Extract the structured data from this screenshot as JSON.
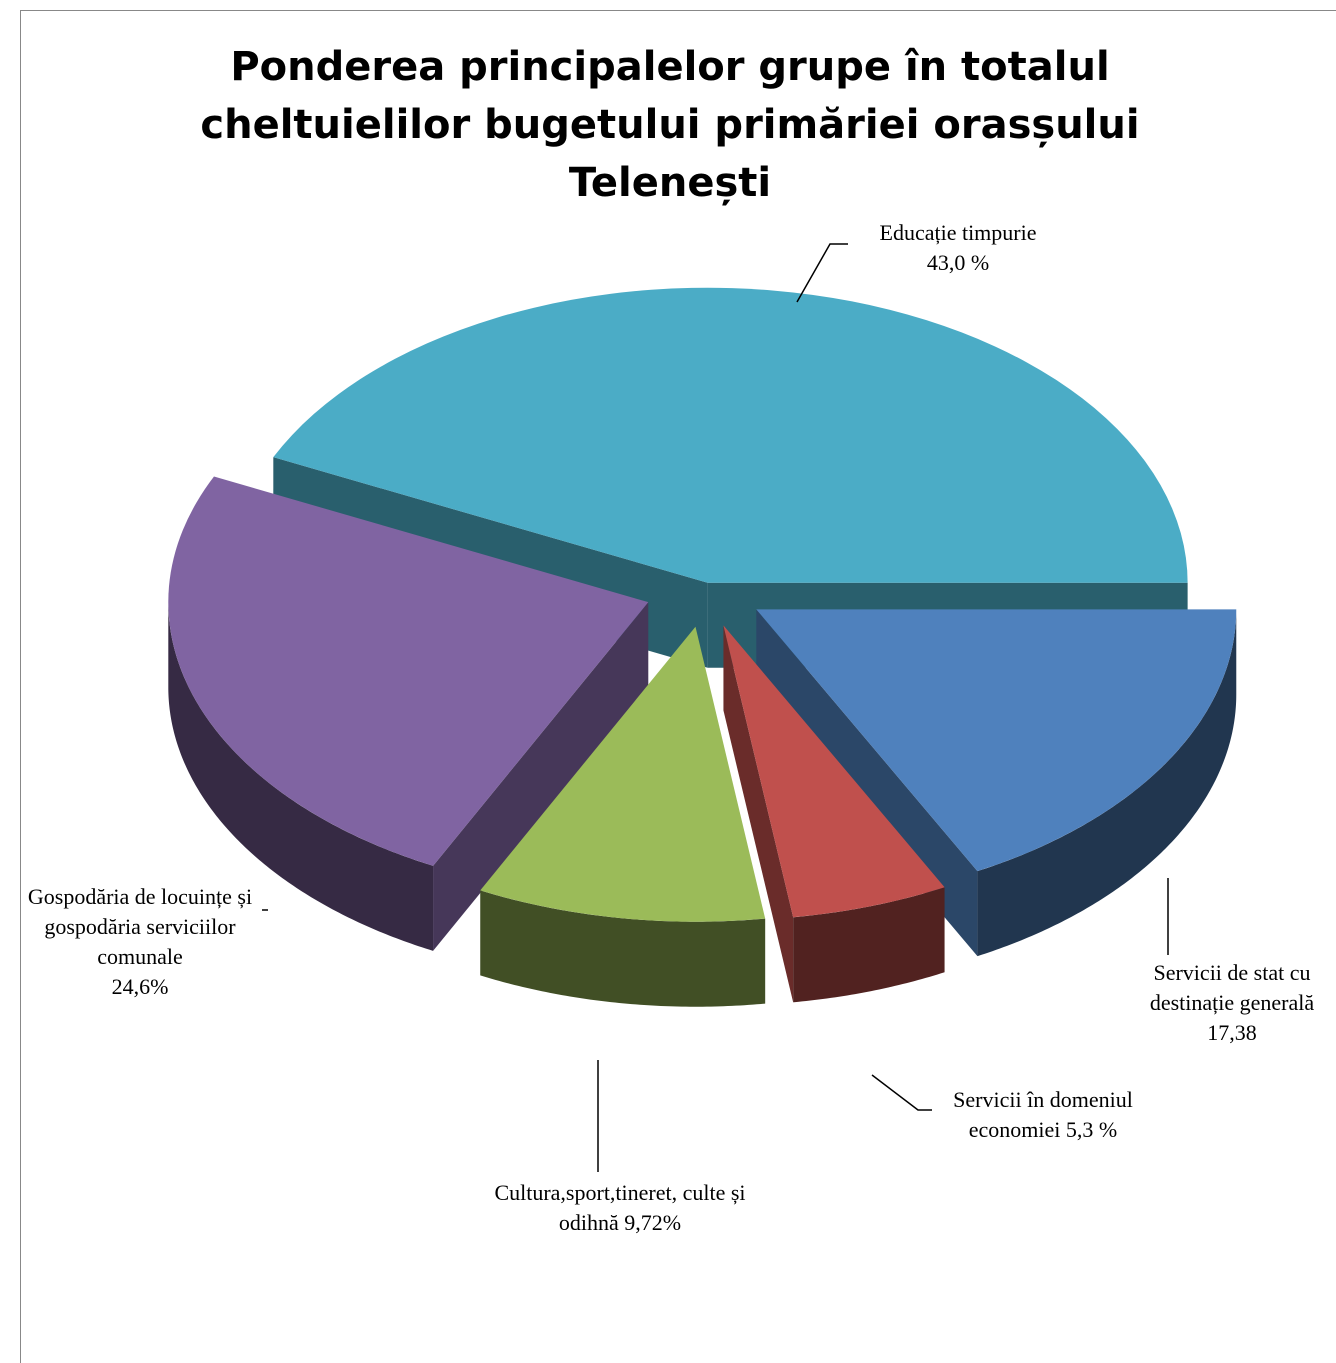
{
  "chart_data": {
    "type": "pie",
    "title": "Ponderea principalelor grupe în totalul cheltuielilor bugetului primăriei orasșului Telenești",
    "categories": [
      "Educație timpurie",
      "Servicii de stat cu destinație generală",
      "Servicii în domeniul economiei",
      "Cultura,sport,tineret, culte și odihnă",
      "Gospodăria de locuințe și gospodăria serviciilor comunale"
    ],
    "values": [
      43.0,
      17.38,
      5.3,
      9.72,
      24.6
    ],
    "value_labels": [
      "43,0 %",
      "17,38",
      "5,3 %",
      "9,72%",
      "24,6%"
    ],
    "colors": [
      "#4bacc6",
      "#4f81bd",
      "#c0504d",
      "#9bbb59",
      "#8064a2"
    ]
  }
}
